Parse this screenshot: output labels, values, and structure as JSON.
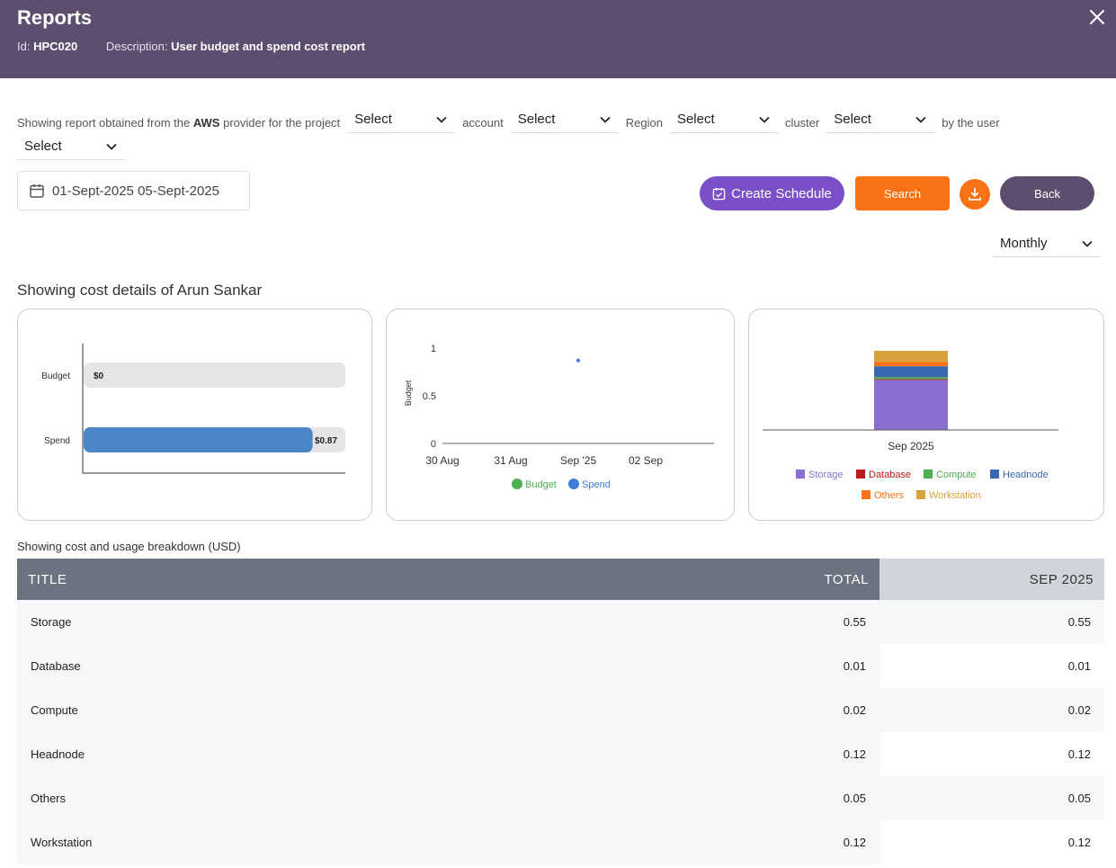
{
  "header": {
    "title": "Reports",
    "id_label": "Id:",
    "id_value": "HPC020",
    "desc_label": "Description:",
    "desc_value": "User budget and spend cost report"
  },
  "filters": {
    "text_1": "Showing report obtained from the",
    "provider": "AWS",
    "text_2": "provider for the project",
    "project": "Select",
    "text_account": "account",
    "account": "Select",
    "text_region": "Region",
    "region": "Select",
    "text_cluster": "cluster",
    "cluster": "Select",
    "text_user": "by the user",
    "user": "Select"
  },
  "date_range": {
    "start": "01-Sept-2025",
    "end": "05-Sept-2025"
  },
  "buttons": {
    "create_schedule": "Create Schedule",
    "search": "Search",
    "back": "Back"
  },
  "period": "Monthly",
  "section_title": "Showing cost details of Arun Sankar",
  "chart_data": [
    {
      "type": "bar",
      "orientation": "horizontal",
      "categories": [
        "Budget",
        "Spend"
      ],
      "values": [
        0,
        0.87
      ],
      "data_labels": [
        "$0",
        "$0.87"
      ],
      "max": 0.87,
      "colors": {
        "track": "#e5e5e5",
        "spend": "#4a86c8"
      }
    },
    {
      "type": "line",
      "x": [
        "30 Aug",
        "31 Aug",
        "Sep '25",
        "02 Sep"
      ],
      "ylabel": "Budget",
      "ylim": [
        0,
        1
      ],
      "yticks": [
        "0",
        "0.5",
        "1"
      ],
      "points": [
        {
          "x": "Sep '25",
          "y": 0.87,
          "series": "Spend"
        }
      ],
      "series": [
        {
          "name": "Budget",
          "color": "#4caf50"
        },
        {
          "name": "Spend",
          "color": "#3b7dd8"
        }
      ]
    },
    {
      "type": "bar",
      "stacked": true,
      "categories": [
        "Sep 2025"
      ],
      "series": [
        {
          "name": "Storage",
          "value": 0.55,
          "color": "#8a6fd1"
        },
        {
          "name": "Database",
          "value": 0.01,
          "color": "#b91c1c"
        },
        {
          "name": "Compute",
          "value": 0.02,
          "color": "#4caf50"
        },
        {
          "name": "Headnode",
          "value": 0.12,
          "color": "#3a68b0"
        },
        {
          "name": "Others",
          "value": 0.05,
          "color": "#f97316"
        },
        {
          "name": "Workstation",
          "value": 0.12,
          "color": "#d9a13b"
        }
      ]
    }
  ],
  "breakdown_title": "Showing cost and usage breakdown",
  "breakdown_unit": "(USD)",
  "table": {
    "headers": {
      "title": "TITLE",
      "total": "TOTAL",
      "month": "SEP 2025"
    },
    "rows": [
      {
        "title": "Storage",
        "total": "0.55",
        "month": "0.55"
      },
      {
        "title": "Database",
        "total": "0.01",
        "month": "0.01"
      },
      {
        "title": "Compute",
        "total": "0.02",
        "month": "0.02"
      },
      {
        "title": "Headnode",
        "total": "0.12",
        "month": "0.12"
      },
      {
        "title": "Others",
        "total": "0.05",
        "month": "0.05"
      },
      {
        "title": "Workstation",
        "total": "0.12",
        "month": "0.12"
      }
    ]
  }
}
